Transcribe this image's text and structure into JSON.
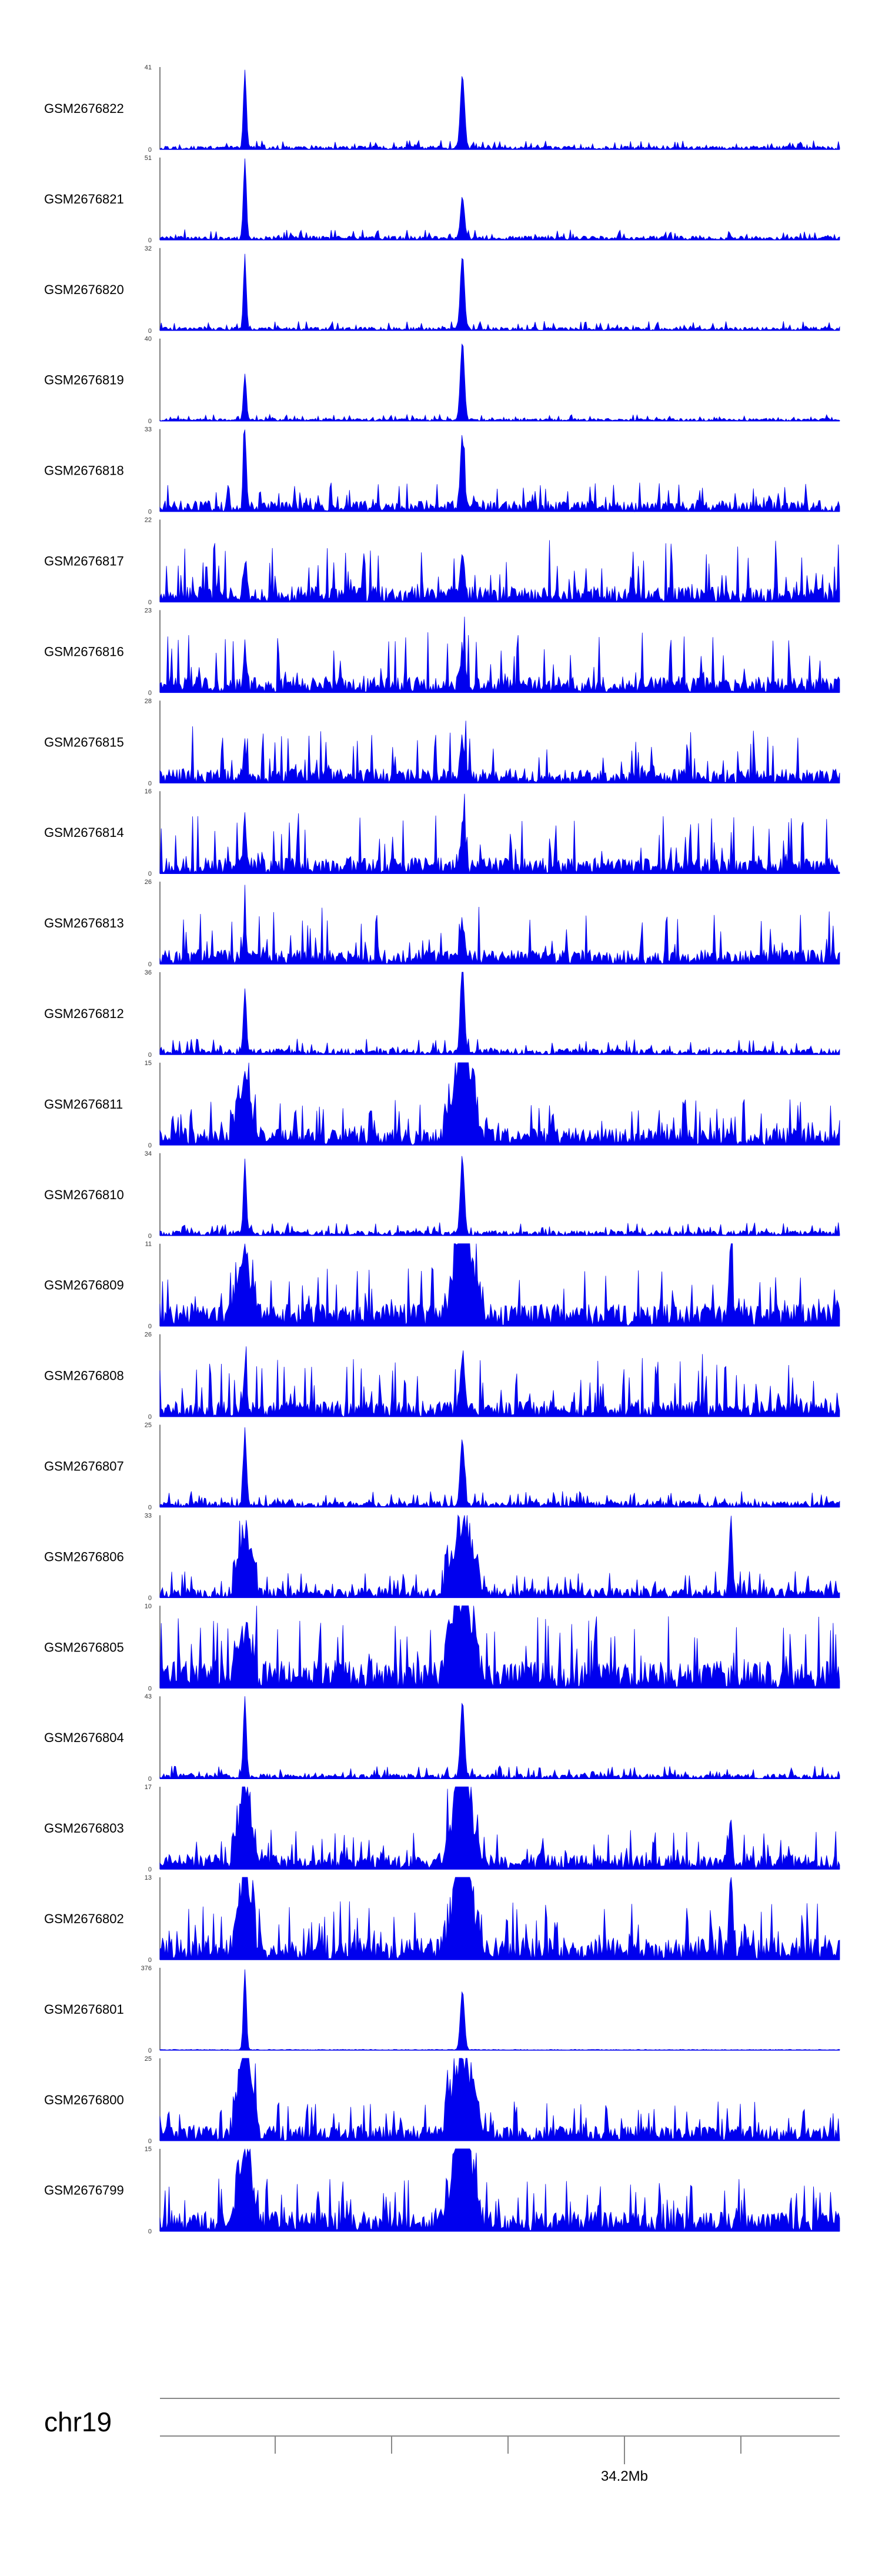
{
  "chart_data": {
    "type": "area",
    "title": "",
    "xlabel": "",
    "ylabel": "",
    "grid": false,
    "legend": "none",
    "color": "#0000ee",
    "chromosome": "chr19",
    "x_tick_label": "34.2Mb",
    "x_tick_count": 5,
    "peak_positions_fraction": [
      0.125,
      0.445
    ],
    "tracks": [
      {
        "name": "GSM2676822",
        "ymax": 41,
        "y_ticks": [
          "41",
          "0"
        ],
        "profile": "sharp",
        "peaks": [
          0.95,
          0.9
        ],
        "noise": 0.07,
        "extra_peaks": []
      },
      {
        "name": "GSM2676821",
        "ymax": 51,
        "y_ticks": [
          "51",
          "0"
        ],
        "profile": "sharp",
        "peaks": [
          0.98,
          0.5
        ],
        "noise": 0.08,
        "extra_peaks": []
      },
      {
        "name": "GSM2676820",
        "ymax": 32,
        "y_ticks": [
          "32",
          "0"
        ],
        "profile": "sharp",
        "peaks": [
          0.82,
          0.9
        ],
        "noise": 0.07,
        "extra_peaks": []
      },
      {
        "name": "GSM2676819",
        "ymax": 40,
        "y_ticks": [
          "40",
          "0"
        ],
        "profile": "sharp",
        "peaks": [
          0.55,
          0.95
        ],
        "noise": 0.05,
        "extra_peaks": []
      },
      {
        "name": "GSM2676818",
        "ymax": 33,
        "y_ticks": [
          "33",
          "0"
        ],
        "profile": "mixed",
        "peaks": [
          0.92,
          0.85
        ],
        "noise": 0.22,
        "extra_peaks": []
      },
      {
        "name": "GSM2676817",
        "ymax": 22,
        "y_ticks": [
          "22",
          "0"
        ],
        "profile": "noisy",
        "peaks": [
          0.45,
          0.4
        ],
        "noise": 0.55,
        "extra_peaks": []
      },
      {
        "name": "GSM2676816",
        "ymax": 23,
        "y_ticks": [
          "23",
          "0"
        ],
        "profile": "noisy",
        "peaks": [
          0.5,
          0.45
        ],
        "noise": 0.55,
        "extra_peaks": []
      },
      {
        "name": "GSM2676815",
        "ymax": 28,
        "y_ticks": [
          "28",
          "0"
        ],
        "profile": "noisy",
        "peaks": [
          0.45,
          0.45
        ],
        "noise": 0.5,
        "extra_peaks": []
      },
      {
        "name": "GSM2676814",
        "ymax": 16,
        "y_ticks": [
          "16",
          "0"
        ],
        "profile": "noisy",
        "peaks": [
          0.6,
          0.5
        ],
        "noise": 0.55,
        "extra_peaks": []
      },
      {
        "name": "GSM2676813",
        "ymax": 26,
        "y_ticks": [
          "26",
          "0"
        ],
        "profile": "noisy",
        "peaks": [
          0.5,
          0.45
        ],
        "noise": 0.5,
        "extra_peaks": []
      },
      {
        "name": "GSM2676812",
        "ymax": 36,
        "y_ticks": [
          "36",
          "0"
        ],
        "profile": "sharp",
        "peaks": [
          0.78,
          0.95
        ],
        "noise": 0.12,
        "extra_peaks": []
      },
      {
        "name": "GSM2676811",
        "ymax": 15,
        "y_ticks": [
          "15",
          "0"
        ],
        "profile": "broad",
        "peaks": [
          0.55,
          0.9
        ],
        "noise": 0.35,
        "extra_peaks": []
      },
      {
        "name": "GSM2676810",
        "ymax": 34,
        "y_ticks": [
          "34",
          "0"
        ],
        "profile": "sharp",
        "peaks": [
          0.88,
          0.9
        ],
        "noise": 0.1,
        "extra_peaks": []
      },
      {
        "name": "GSM2676809",
        "ymax": 11,
        "y_ticks": [
          "11",
          "0"
        ],
        "profile": "broad",
        "peaks": [
          0.6,
          0.85
        ],
        "noise": 0.45,
        "extra_peaks": [
          {
            "x": 0.84,
            "h": 0.95
          }
        ]
      },
      {
        "name": "GSM2676808",
        "ymax": 26,
        "y_ticks": [
          "26",
          "0"
        ],
        "profile": "noisy",
        "peaks": [
          0.55,
          0.7
        ],
        "noise": 0.55,
        "extra_peaks": []
      },
      {
        "name": "GSM2676807",
        "ymax": 25,
        "y_ticks": [
          "25",
          "0"
        ],
        "profile": "sharp",
        "peaks": [
          0.95,
          0.8
        ],
        "noise": 0.12,
        "extra_peaks": []
      },
      {
        "name": "GSM2676806",
        "ymax": 33,
        "y_ticks": [
          "33",
          "0"
        ],
        "profile": "broad",
        "peaks": [
          0.6,
          0.6
        ],
        "noise": 0.2,
        "extra_peaks": [
          {
            "x": 0.84,
            "h": 0.95
          }
        ]
      },
      {
        "name": "GSM2676805",
        "ymax": 10,
        "y_ticks": [
          "10",
          "0"
        ],
        "profile": "broad",
        "peaks": [
          0.4,
          0.9
        ],
        "noise": 0.55,
        "extra_peaks": []
      },
      {
        "name": "GSM2676804",
        "ymax": 43,
        "y_ticks": [
          "43",
          "0"
        ],
        "profile": "sharp",
        "peaks": [
          0.98,
          0.9
        ],
        "noise": 0.1,
        "extra_peaks": []
      },
      {
        "name": "GSM2676803",
        "ymax": 17,
        "y_ticks": [
          "17",
          "0"
        ],
        "profile": "broad",
        "peaks": [
          0.85,
          0.95
        ],
        "noise": 0.3,
        "extra_peaks": [
          {
            "x": 0.84,
            "h": 0.5
          }
        ]
      },
      {
        "name": "GSM2676802",
        "ymax": 13,
        "y_ticks": [
          "13",
          "0"
        ],
        "profile": "broad",
        "peaks": [
          0.8,
          0.95
        ],
        "noise": 0.45,
        "extra_peaks": [
          {
            "x": 0.84,
            "h": 0.9
          }
        ]
      },
      {
        "name": "GSM2676801",
        "ymax": 376,
        "y_ticks": [
          "376",
          "0"
        ],
        "profile": "isolated",
        "peaks": [
          0.98,
          0.72
        ],
        "noise": 0.01,
        "extra_peaks": []
      },
      {
        "name": "GSM2676800",
        "ymax": 25,
        "y_ticks": [
          "25",
          "0"
        ],
        "profile": "broad",
        "peaks": [
          0.98,
          0.75
        ],
        "noise": 0.3,
        "extra_peaks": []
      },
      {
        "name": "GSM2676799",
        "ymax": 15,
        "y_ticks": [
          "15",
          "0"
        ],
        "profile": "broad",
        "peaks": [
          0.7,
          0.98
        ],
        "noise": 0.4,
        "extra_peaks": []
      }
    ]
  }
}
